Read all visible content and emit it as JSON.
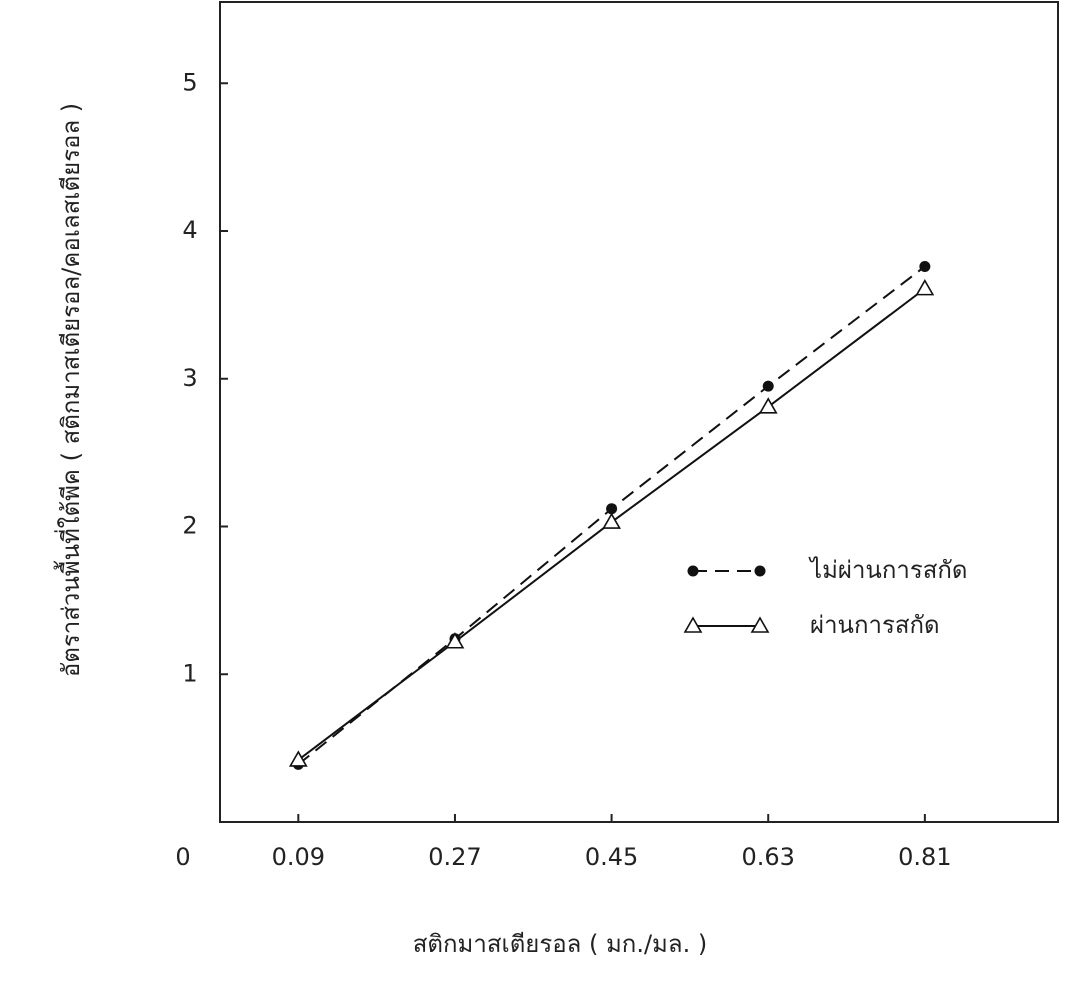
{
  "chart_data": {
    "type": "line",
    "xlabel": "สติกมาสเตียรอล ( มก./มล. )",
    "ylabel": "อัตราส่วนพื้นที่ใต้พีค ( สติกมาสเตียรอล/คอเลสเตียรอล )",
    "x": [
      0.09,
      0.27,
      0.45,
      0.63,
      0.81
    ],
    "xlim": [
      0,
      0.963
    ],
    "xticks": [
      0,
      0.09,
      0.27,
      0.45,
      0.63,
      0.81
    ],
    "ylim": [
      0,
      5.55
    ],
    "yticks": [
      1,
      2,
      3,
      4,
      5
    ],
    "series": [
      {
        "name": "ไม่ผ่านการสกัด",
        "color": "#111111",
        "line_style": "dashed",
        "marker": "circle",
        "values": [
          0.39,
          1.24,
          2.12,
          2.95,
          3.76
        ]
      },
      {
        "name": "ผ่านการสกัด",
        "color": "#111111",
        "line_style": "solid",
        "marker": "triangle",
        "values": [
          0.42,
          1.22,
          2.03,
          2.81,
          3.61
        ]
      }
    ]
  }
}
